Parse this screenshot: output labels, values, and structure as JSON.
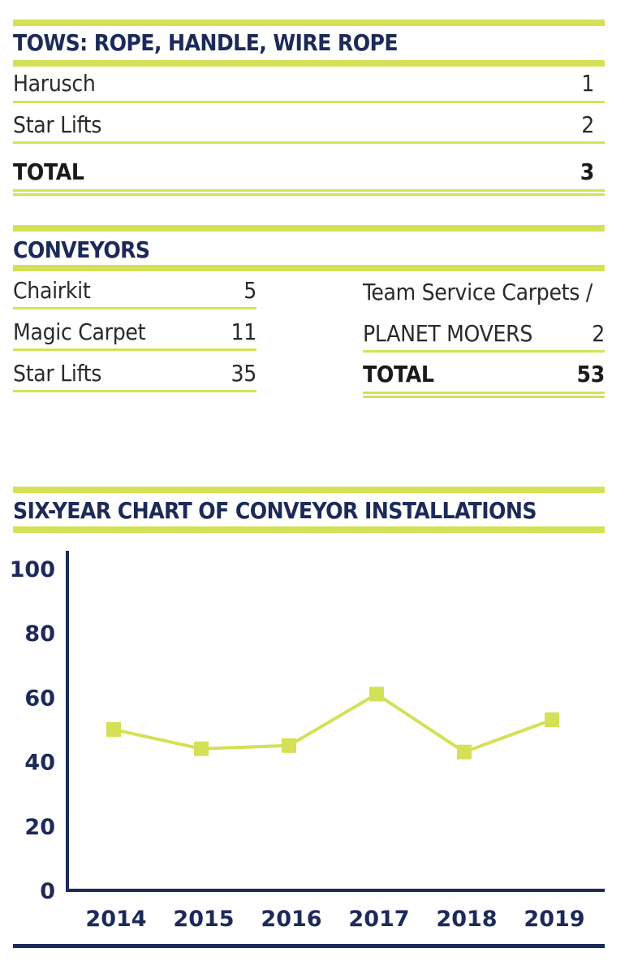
{
  "tows": {
    "title": "TOWS: ROPE, HANDLE, WIRE ROPE",
    "rows": [
      {
        "label": "Harusch",
        "value": "1"
      },
      {
        "label": "Star Lifts",
        "value": "2"
      }
    ],
    "total_label": "TOTAL",
    "total_value": "3"
  },
  "conveyors": {
    "title": "CONVEYORS",
    "left_rows": [
      {
        "label": "Chairkit",
        "value": "5"
      },
      {
        "label": "Magic Carpet",
        "value": "11"
      },
      {
        "label": "Star Lifts",
        "value": "35"
      }
    ],
    "right_line1": "Team Service Carpets /",
    "right_line2_label": "PLANET MOVERS",
    "right_line2_value": "2",
    "total_label": "TOTAL",
    "total_value": "53"
  },
  "chart_data": {
    "type": "line",
    "title": "SIX-YEAR CHART OF CONVEYOR INSTALLATIONS",
    "xlabel": "",
    "ylabel": "",
    "categories": [
      "2014",
      "2015",
      "2016",
      "2017",
      "2018",
      "2019"
    ],
    "series": [
      {
        "values": [
          50,
          44,
          45,
          61,
          43,
          53
        ]
      }
    ],
    "ylim": [
      0,
      100
    ],
    "yticks": [
      0,
      20,
      40,
      60,
      80,
      100
    ],
    "grid": false,
    "legend": "none",
    "colors": {
      "series": "#d4e157",
      "axis": "#1c2a5a",
      "accent": "#d4e157"
    }
  }
}
